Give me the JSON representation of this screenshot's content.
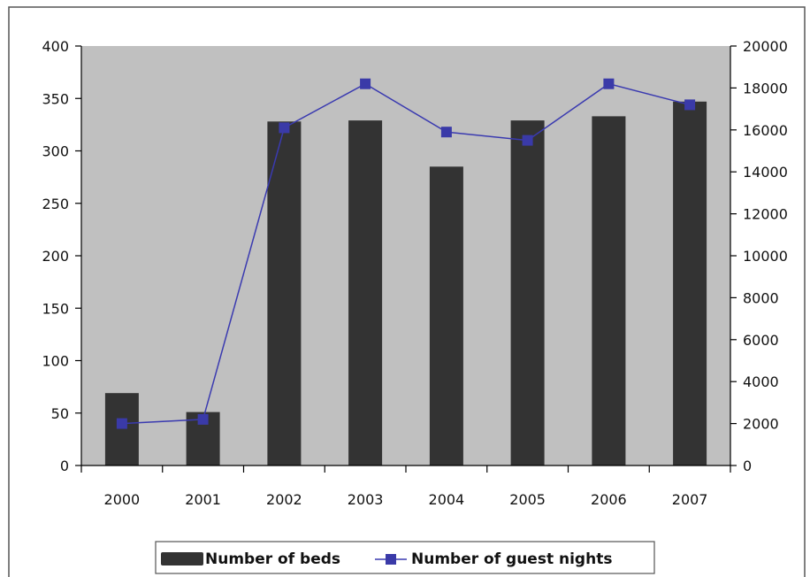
{
  "colors": {
    "plot_background": "#c0c0c0",
    "bar_fill": "#333333",
    "line_color": "#3a3ab0",
    "marker_color": "#3a3aa8",
    "axis_color": "#000000",
    "frame_color": "#555555"
  },
  "chart_data": {
    "type": "bar",
    "categories": [
      "2000",
      "2001",
      "2002",
      "2003",
      "2004",
      "2005",
      "2006",
      "2007"
    ],
    "series": [
      {
        "name": "Number of beds",
        "type": "bar",
        "axis": "left",
        "values": [
          69,
          51,
          328,
          329,
          285,
          329,
          333,
          347
        ]
      },
      {
        "name": "Number of guest nights",
        "type": "line",
        "axis": "right",
        "marker": "square",
        "values": [
          2000,
          2200,
          16100,
          18200,
          15900,
          15500,
          18200,
          17200
        ]
      }
    ],
    "y_left": {
      "min": 0,
      "max": 400,
      "step": 50,
      "ticks": [
        "0",
        "50",
        "100",
        "150",
        "200",
        "250",
        "300",
        "350",
        "400"
      ]
    },
    "y_right": {
      "min": 0,
      "max": 20000,
      "step": 2000,
      "ticks": [
        "0",
        "2000",
        "4000",
        "6000",
        "8000",
        "10000",
        "12000",
        "14000",
        "16000",
        "18000",
        "20000"
      ]
    },
    "grid": false,
    "legend_position": "bottom"
  }
}
